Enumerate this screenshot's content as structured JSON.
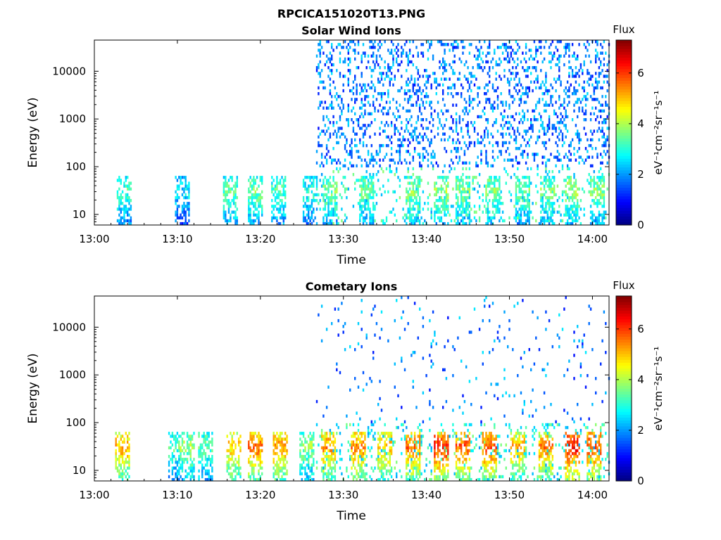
{
  "figure_title": "RPCICA151020T13.PNG",
  "chart_data": [
    {
      "type": "heatmap",
      "title": "Solar Wind Ions",
      "xlabel": "Time",
      "ylabel": "Energy (eV)",
      "x_ticks": [
        "13:00",
        "13:10",
        "13:20",
        "13:30",
        "13:40",
        "13:50",
        "14:00"
      ],
      "x_range": [
        "13:00",
        "14:02"
      ],
      "y_scale": "log",
      "y_ticks": [
        "10",
        "100",
        "1000",
        "10000"
      ],
      "y_range": [
        6,
        45000
      ],
      "colorbar": {
        "label": "Flux",
        "units": "eV⁻¹cm⁻²sr⁻¹s⁻¹",
        "range": [
          0,
          7.3
        ],
        "ticks": [
          "0",
          "2",
          "4",
          "6"
        ],
        "colormap": "jet"
      },
      "description_profile": {
        "bursts": [
          {
            "t": 3.5,
            "v": 3.2
          },
          {
            "t": 10.5,
            "v": 2.6
          },
          {
            "t": 16.3,
            "v": 3.4
          },
          {
            "t": 19.2,
            "v": 3.6
          },
          {
            "t": 22.0,
            "v": 3.3
          },
          {
            "t": 25.8,
            "v": 3.0
          },
          {
            "t": 28.3,
            "v": 3.6
          },
          {
            "t": 32.6,
            "v": 3.5
          },
          {
            "t": 38.4,
            "v": 3.7
          },
          {
            "t": 41.8,
            "v": 3.9
          },
          {
            "t": 44.3,
            "v": 3.7
          },
          {
            "t": 48.0,
            "v": 3.8
          },
          {
            "t": 51.5,
            "v": 3.5
          },
          {
            "t": 54.6,
            "v": 3.6
          },
          {
            "t": 57.6,
            "v": 3.9
          },
          {
            "t": 60.6,
            "v": 3.7
          }
        ],
        "high_energy_start": 26.5
      }
    },
    {
      "type": "heatmap",
      "title": "Cometary Ions",
      "xlabel": "Time",
      "ylabel": "Energy (eV)",
      "x_ticks": [
        "13:00",
        "13:10",
        "13:20",
        "13:30",
        "13:40",
        "13:50",
        "14:00"
      ],
      "x_range": [
        "13:00",
        "14:02"
      ],
      "y_scale": "log",
      "y_ticks": [
        "10",
        "100",
        "1000",
        "10000"
      ],
      "y_range": [
        6,
        45000
      ],
      "colorbar": {
        "label": "Flux",
        "units": "eV⁻¹cm⁻²sr⁻¹s⁻¹",
        "range": [
          0,
          7.3
        ],
        "ticks": [
          "0",
          "2",
          "4",
          "6"
        ],
        "colormap": "jet"
      },
      "description_profile": {
        "bursts": [
          {
            "t": 3.4,
            "v": 5.2
          },
          {
            "t": 9.7,
            "v": 3.3
          },
          {
            "t": 11.1,
            "v": 3.9
          },
          {
            "t": 13.3,
            "v": 3.5
          },
          {
            "t": 16.6,
            "v": 5.0
          },
          {
            "t": 19.3,
            "v": 5.7
          },
          {
            "t": 22.3,
            "v": 5.4
          },
          {
            "t": 25.5,
            "v": 3.8
          },
          {
            "t": 28.1,
            "v": 5.4
          },
          {
            "t": 31.7,
            "v": 5.5
          },
          {
            "t": 34.9,
            "v": 5.1
          },
          {
            "t": 38.4,
            "v": 5.6
          },
          {
            "t": 41.7,
            "v": 6.3
          },
          {
            "t": 44.3,
            "v": 5.8
          },
          {
            "t": 47.6,
            "v": 5.9
          },
          {
            "t": 51.0,
            "v": 5.1
          },
          {
            "t": 54.3,
            "v": 5.5
          },
          {
            "t": 57.6,
            "v": 6.4
          },
          {
            "t": 60.1,
            "v": 6.0
          }
        ],
        "high_energy_start": 26.5
      }
    }
  ]
}
